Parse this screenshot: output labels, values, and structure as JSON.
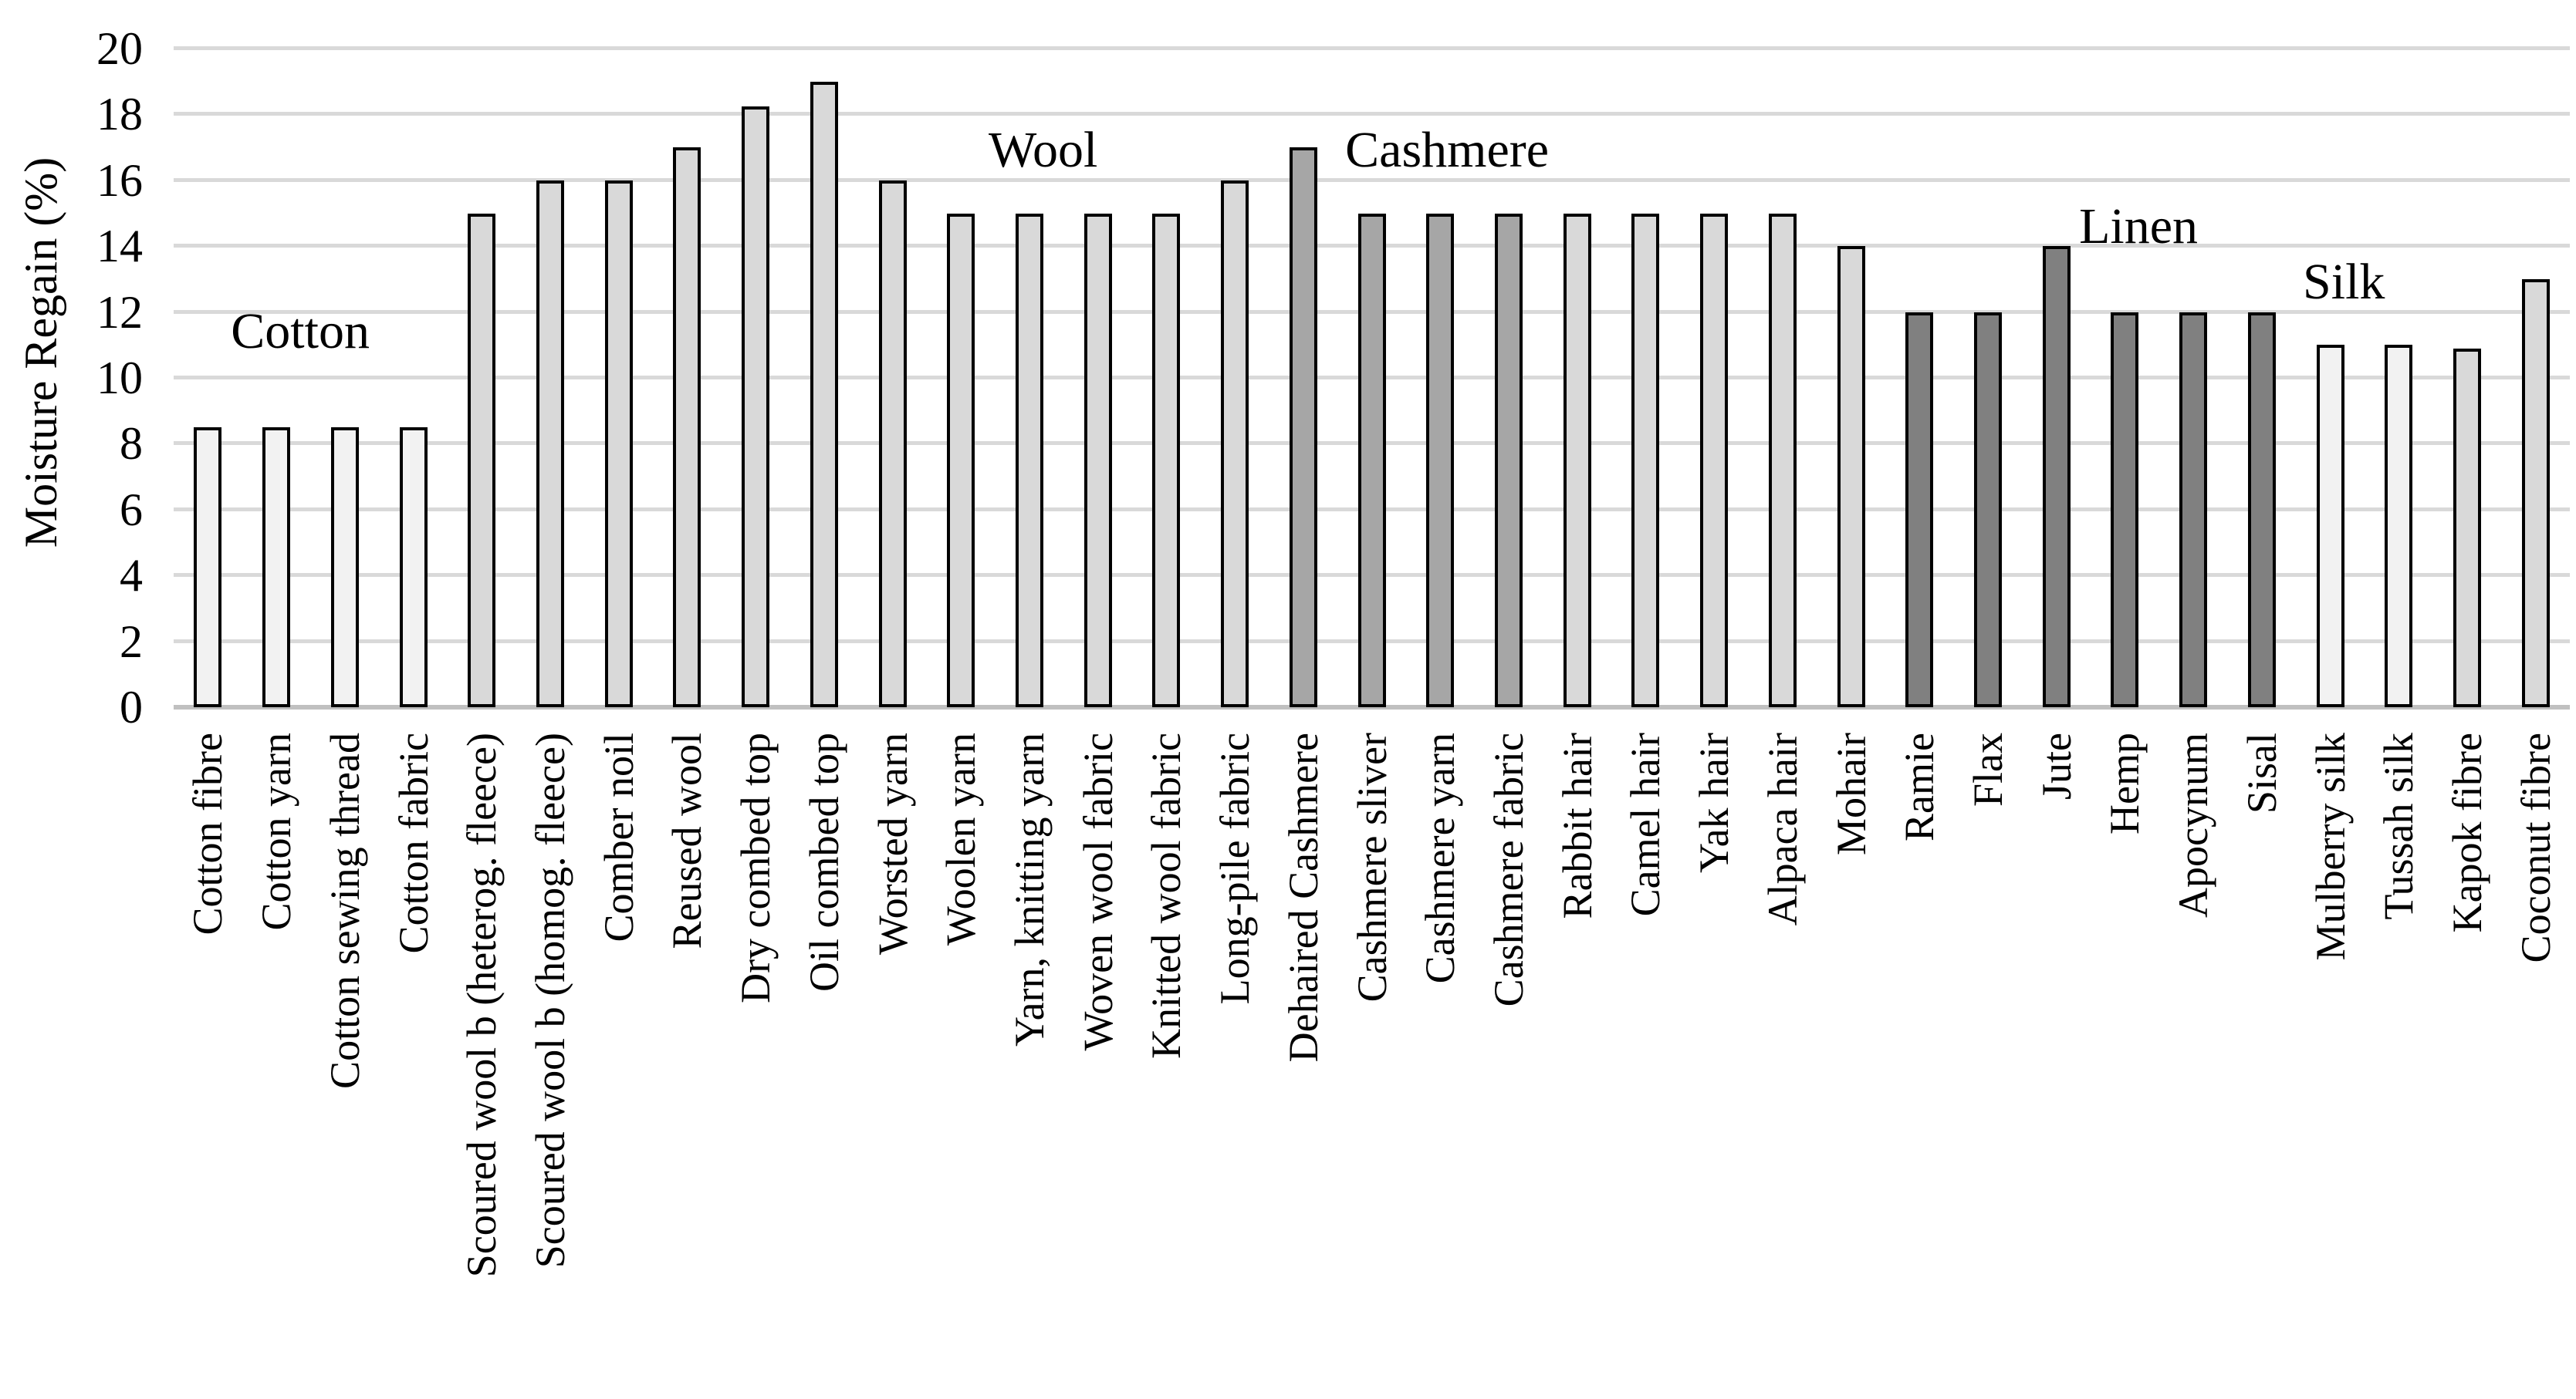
{
  "chart_data": {
    "type": "bar",
    "title": "",
    "ylabel": "Moisture Regain (%)",
    "xlabel": "",
    "ylim": [
      0,
      20
    ],
    "yticks": [
      0,
      2,
      4,
      6,
      8,
      10,
      12,
      14,
      16,
      18,
      20
    ],
    "grid": true,
    "legend": "none",
    "categories": [
      "Cotton fibre",
      "Cotton yarn",
      "Cotton sewing thread",
      "Cotton fabric",
      "Scoured wool b (heterog. fleece)",
      "Scoured wool b (homog. fleece)",
      "Comber noil",
      "Reused wool",
      "Dry combed top",
      "Oil combed top",
      "Worsted yarn",
      "Woolen yarn",
      "Yarn, knitting yarn",
      "Woven wool fabric",
      "Knitted wool fabric",
      "Long-pile fabric",
      "Dehaired Cashmere",
      "Cashmere sliver",
      "Cashmere yarn",
      "Cashmere fabric",
      "Rabbit hair",
      "Camel hair",
      "Yak hair",
      "Alpaca hair",
      "Mohair",
      "Ramie",
      "Flax",
      "Jute",
      "Hemp",
      "Apocynum",
      "Sisal",
      "Mulberry silk",
      "Tussah silk",
      "Kapok fibre",
      "Coconut fibre"
    ],
    "values": [
      8.5,
      8.5,
      8.5,
      8.5,
      15,
      16,
      16,
      17,
      18.25,
      19,
      16,
      15,
      15,
      15,
      15,
      16,
      17,
      15,
      15,
      15,
      15,
      15,
      15,
      15,
      14,
      12,
      12,
      14,
      12,
      12,
      12,
      11,
      11,
      10.9,
      13
    ],
    "bar_colors": [
      "#F2F2F2",
      "#F2F2F2",
      "#F2F2F2",
      "#F2F2F2",
      "#D9D9D9",
      "#D9D9D9",
      "#D9D9D9",
      "#D9D9D9",
      "#D9D9D9",
      "#D9D9D9",
      "#D9D9D9",
      "#D9D9D9",
      "#D9D9D9",
      "#D9D9D9",
      "#D9D9D9",
      "#D9D9D9",
      "#A6A6A6",
      "#A6A6A6",
      "#A6A6A6",
      "#A6A6A6",
      "#D9D9D9",
      "#D9D9D9",
      "#D9D9D9",
      "#D9D9D9",
      "#D9D9D9",
      "#808080",
      "#808080",
      "#808080",
      "#808080",
      "#808080",
      "#808080",
      "#F2F2F2",
      "#F2F2F2",
      "#D9D9D9",
      "#D9D9D9"
    ],
    "palette": {
      "cotton_silk": "#F2F2F2",
      "wool_hair": "#D9D9D9",
      "cashmere": "#A6A6A6",
      "bast_linen": "#808080",
      "bar_border": "#000000",
      "gridline": "#D9D9D9",
      "axisline": "#C0C0C0"
    },
    "group_labels": [
      {
        "text": "Cotton",
        "center_index": 1.35,
        "center_value": 11.4
      },
      {
        "text": "Wool",
        "center_index": 12.2,
        "center_value": 16.9
      },
      {
        "text": "Cashmere",
        "center_index": 18.1,
        "center_value": 16.9
      },
      {
        "text": "Linen",
        "center_index": 28.2,
        "center_value": 14.6
      },
      {
        "text": "Silk",
        "center_index": 31.2,
        "center_value": 12.9
      }
    ]
  }
}
